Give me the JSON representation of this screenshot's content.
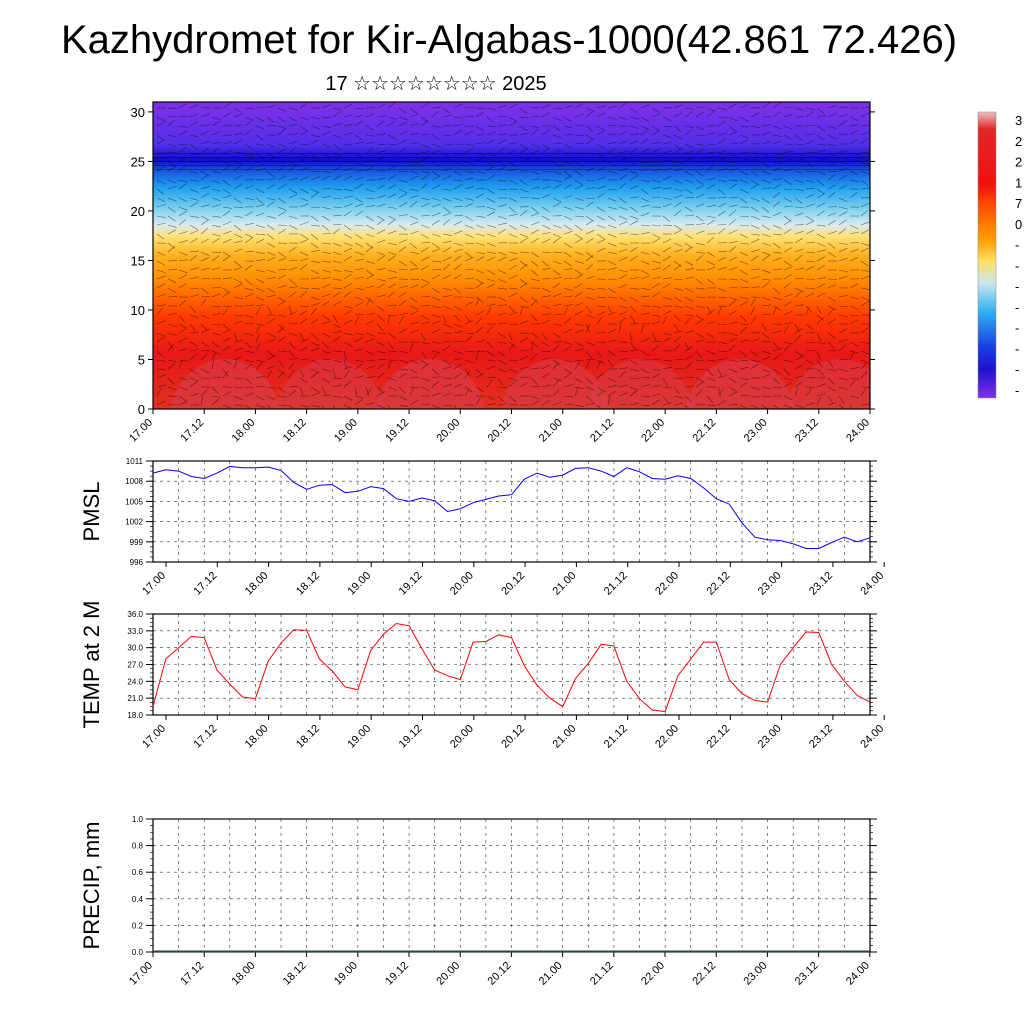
{
  "header": {
    "title": "Kazhydromet for Kir-Algabas-1000(42.861 72.426)",
    "subtitle": "17 ☆☆☆☆☆☆☆☆ 2025"
  },
  "time_ticks": [
    "17.00",
    "17.12",
    "18.00",
    "18.12",
    "19.00",
    "19.12",
    "20.00",
    "20.12",
    "21.00",
    "21.12",
    "22.00",
    "22.12",
    "23.00",
    "23.12",
    "24.00"
  ],
  "chart_data": [
    {
      "type": "heatmap",
      "name": "vertical-profile",
      "y_ticks": [
        "0",
        "5",
        "10",
        "15",
        "20",
        "25",
        "30"
      ],
      "ylim": [
        0,
        31
      ],
      "x_ticks": [
        "17.00",
        "17.12",
        "18.00",
        "18.12",
        "19.00",
        "19.12",
        "20.00",
        "20.12",
        "21.00",
        "21.12",
        "22.00",
        "22.12",
        "23.00",
        "23.12",
        "24.00"
      ],
      "colorbar_labels": [
        "3",
        "2",
        "2",
        "1",
        "7",
        "0",
        "-",
        "-",
        "-",
        "-",
        "-",
        "-",
        "-",
        "-"
      ],
      "colors": [
        "#e8b0b0",
        "#e02020",
        "#ff5a00",
        "#ffa000",
        "#ffe070",
        "#a8dcf0",
        "#30b0f0",
        "#2030e0",
        "#8030e8"
      ]
    },
    {
      "type": "line",
      "name": "PMSL",
      "ylabel": "PMSL",
      "ylim": [
        996,
        1011
      ],
      "y_ticks": [
        "996",
        "999",
        "1002",
        "1005",
        "1008",
        "1011"
      ],
      "x_ticks": [
        "17.00",
        "17.12",
        "18.00",
        "18.12",
        "19.00",
        "19.12",
        "20.00",
        "20.12",
        "21.00",
        "21.12",
        "22.00",
        "22.12",
        "23.00",
        "23.12",
        "24.00"
      ],
      "color": "#0000ff",
      "x": [
        0,
        3,
        6,
        9,
        12,
        15,
        18,
        21,
        24,
        27,
        30,
        33,
        36,
        39,
        42,
        45,
        48,
        51,
        54,
        57,
        60,
        63,
        66,
        69,
        72,
        75,
        78,
        81,
        84,
        87,
        90,
        93,
        96,
        99,
        102,
        105,
        108,
        111,
        114,
        117,
        120,
        123,
        126,
        129,
        132,
        135,
        138,
        141,
        144,
        147,
        150,
        153,
        156,
        159,
        162,
        165,
        168
      ],
      "values": [
        1009.2,
        1009.7,
        1009.5,
        1008.7,
        1008.4,
        1009.2,
        1010.2,
        1010.0,
        1010.0,
        1010.1,
        1009.6,
        1007.8,
        1006.8,
        1007.4,
        1007.5,
        1006.3,
        1006.5,
        1007.2,
        1006.9,
        1005.4,
        1005.0,
        1005.5,
        1005.1,
        1003.5,
        1003.9,
        1004.8,
        1005.3,
        1005.8,
        1006.0,
        1008.3,
        1009.2,
        1008.6,
        1008.9,
        1009.9,
        1010.0,
        1009.5,
        1008.7,
        1010.0,
        1009.4,
        1008.4,
        1008.3,
        1008.8,
        1008.4,
        1007.0,
        1005.4,
        1004.6,
        1001.8,
        999.7,
        999.3,
        999.2,
        998.7,
        998.0,
        998.0,
        998.9,
        999.7,
        999.0,
        999.6
      ]
    },
    {
      "type": "line",
      "name": "TEMP at 2 M",
      "ylabel": "TEMP at 2 M",
      "ylim": [
        18,
        36
      ],
      "y_ticks": [
        "18.0",
        "21.0",
        "24.0",
        "27.0",
        "30.0",
        "33.0",
        "36.0"
      ],
      "x_ticks": [
        "17.00",
        "17.12",
        "18.00",
        "18.12",
        "19.00",
        "19.12",
        "20.00",
        "20.12",
        "21.00",
        "21.12",
        "22.00",
        "22.12",
        "23.00",
        "23.12",
        "24.00"
      ],
      "color": "#ff0000",
      "x": [
        0,
        3,
        6,
        9,
        12,
        15,
        18,
        21,
        24,
        27,
        30,
        33,
        36,
        39,
        42,
        45,
        48,
        51,
        54,
        57,
        60,
        63,
        66,
        69,
        72,
        75,
        78,
        81,
        84,
        87,
        90,
        93,
        96,
        99,
        102,
        105,
        108,
        111,
        114,
        117,
        120,
        123,
        126,
        129,
        132,
        135,
        138,
        141,
        144,
        147,
        150,
        153,
        156,
        159,
        162,
        165,
        168
      ],
      "values": [
        19.5,
        28.0,
        30.0,
        32.0,
        31.8,
        26.0,
        23.5,
        21.2,
        20.9,
        27.6,
        30.8,
        33.2,
        33.1,
        28.0,
        25.8,
        23.0,
        22.5,
        29.5,
        32.4,
        34.3,
        33.9,
        29.8,
        26.0,
        25.0,
        24.3,
        31.0,
        31.1,
        32.3,
        31.8,
        26.8,
        23.3,
        21.0,
        19.5,
        24.5,
        27.2,
        30.6,
        30.3,
        24.0,
        20.9,
        18.9,
        18.6,
        25.0,
        28.0,
        31.0,
        31.0,
        24.3,
        21.8,
        20.6,
        20.3,
        27.0,
        30.0,
        32.8,
        32.7,
        27.0,
        24.0,
        21.5,
        20.3
      ]
    },
    {
      "type": "bar",
      "name": "PRECIP, mm",
      "ylabel": "PRECIP, mm",
      "ylim": [
        0,
        1
      ],
      "y_ticks": [
        "0.0",
        "0.2",
        "0.4",
        "0.6",
        "0.8",
        "1.0"
      ],
      "x_ticks": [
        "17.00",
        "17.12",
        "18.00",
        "18.12",
        "19.00",
        "19.12",
        "20.00",
        "20.12",
        "21.00",
        "21.12",
        "22.00",
        "22.12",
        "23.00",
        "23.12",
        "24.00"
      ],
      "values": []
    }
  ]
}
